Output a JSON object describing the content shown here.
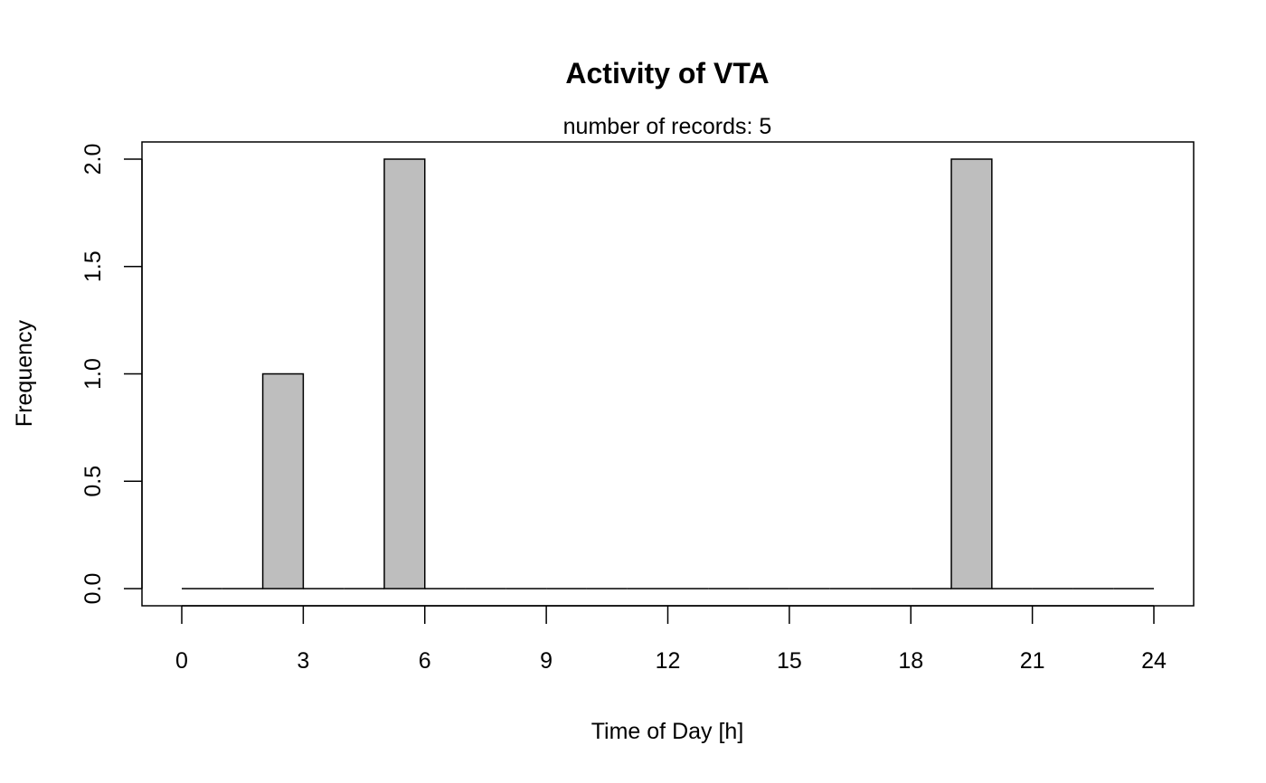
{
  "chart_data": {
    "type": "bar",
    "title": "Activity of VTA",
    "subtitle": "number of records: 5",
    "xlabel": "Time of Day [h]",
    "ylabel": "Frequency",
    "bin_width": 1,
    "xlim": [
      0,
      24
    ],
    "ylim": [
      0,
      2
    ],
    "x_ticks": [
      "0",
      "3",
      "6",
      "9",
      "12",
      "15",
      "18",
      "21",
      "24"
    ],
    "y_ticks": [
      "0.0",
      "0.5",
      "1.0",
      "1.5",
      "2.0"
    ],
    "bins": [
      {
        "start": 0,
        "value": 0
      },
      {
        "start": 1,
        "value": 0
      },
      {
        "start": 2,
        "value": 1
      },
      {
        "start": 3,
        "value": 0
      },
      {
        "start": 4,
        "value": 0
      },
      {
        "start": 5,
        "value": 2
      },
      {
        "start": 6,
        "value": 0
      },
      {
        "start": 7,
        "value": 0
      },
      {
        "start": 8,
        "value": 0
      },
      {
        "start": 9,
        "value": 0
      },
      {
        "start": 10,
        "value": 0
      },
      {
        "start": 11,
        "value": 0
      },
      {
        "start": 12,
        "value": 0
      },
      {
        "start": 13,
        "value": 0
      },
      {
        "start": 14,
        "value": 0
      },
      {
        "start": 15,
        "value": 0
      },
      {
        "start": 16,
        "value": 0
      },
      {
        "start": 17,
        "value": 0
      },
      {
        "start": 18,
        "value": 0
      },
      {
        "start": 19,
        "value": 2
      },
      {
        "start": 20,
        "value": 0
      },
      {
        "start": 21,
        "value": 0
      },
      {
        "start": 22,
        "value": 0
      },
      {
        "start": 23,
        "value": 0
      }
    ],
    "colors": {
      "bar_fill": "#bebebe",
      "stroke": "#000000",
      "background": "#ffffff"
    }
  }
}
